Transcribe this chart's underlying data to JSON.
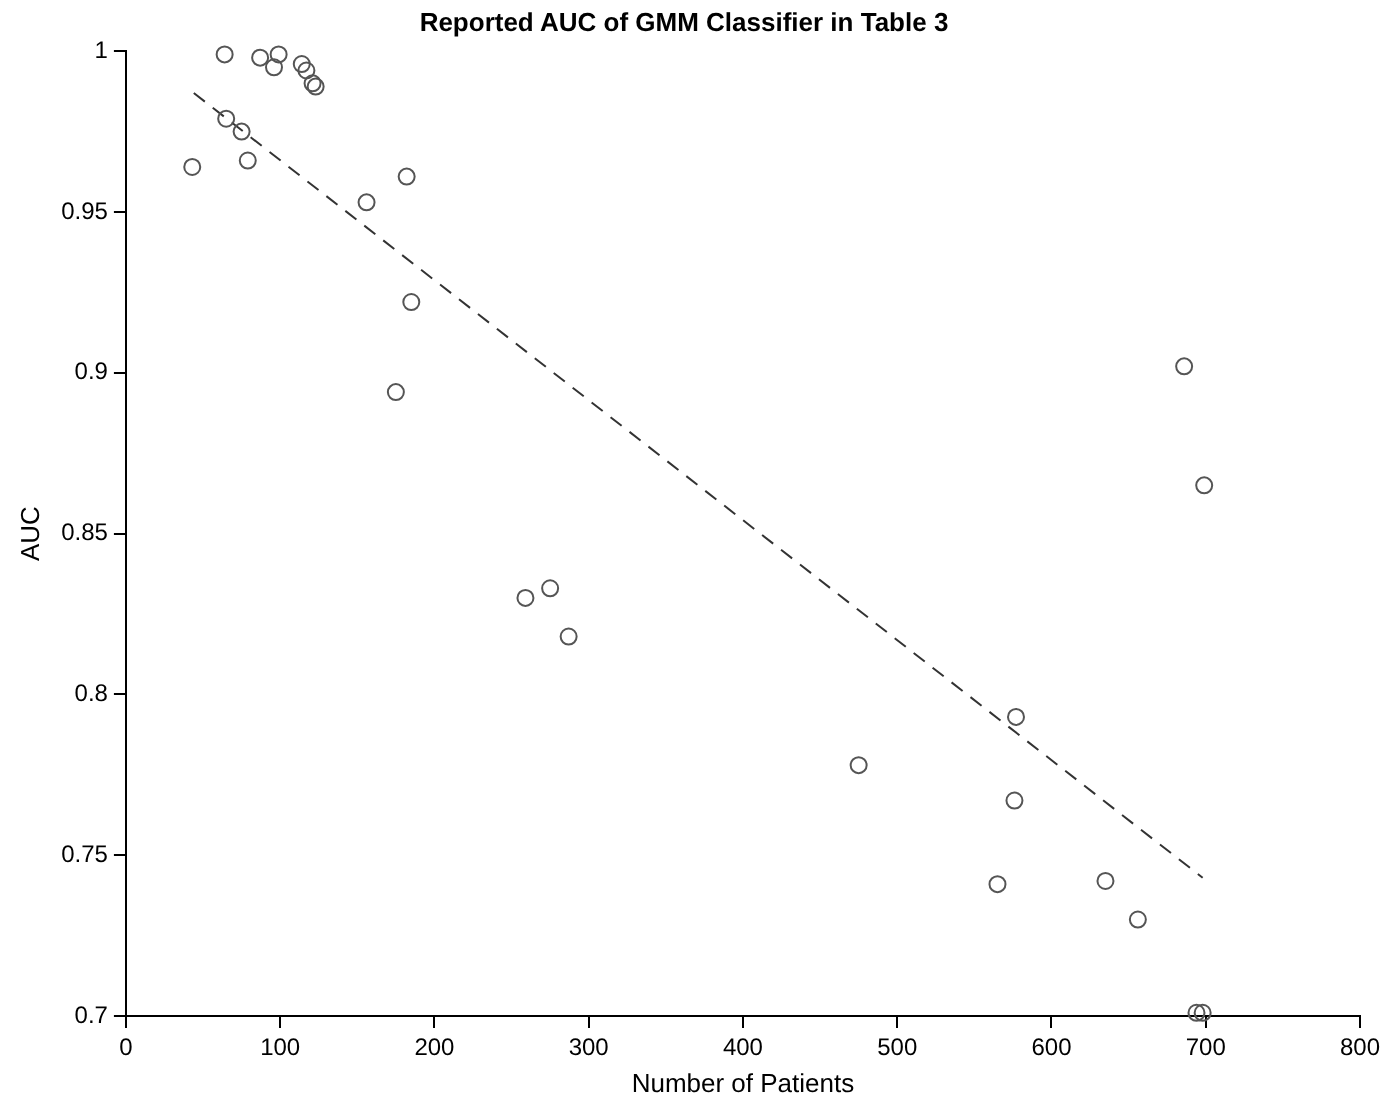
{
  "chart_data": {
    "type": "scatter",
    "title": "Reported AUC of GMM Classifier in Table 3",
    "xlabel": "Number of Patients",
    "ylabel": "AUC",
    "xlim": [
      0,
      800
    ],
    "xticks": [
      0,
      100,
      200,
      300,
      400,
      500,
      600,
      700,
      800
    ],
    "ylim": [
      0.7,
      1
    ],
    "yticks": [
      0.7,
      0.75,
      0.8,
      0.85,
      0.9,
      0.95,
      1
    ],
    "grid": false,
    "legend": false,
    "marker": "circle",
    "series": [
      {
        "color": "#555555",
        "x": [
          64,
          87,
          99,
          96,
          114,
          117,
          121,
          123,
          65,
          75,
          43,
          79,
          182,
          156,
          185,
          175,
          259,
          275,
          287,
          475,
          577,
          576,
          565,
          635,
          656,
          694,
          698,
          686,
          699
        ],
        "values": [
          0.999,
          0.998,
          0.999,
          0.995,
          0.996,
          0.994,
          0.99,
          0.989,
          0.979,
          0.975,
          0.964,
          0.966,
          0.961,
          0.953,
          0.922,
          0.894,
          0.83,
          0.833,
          0.818,
          0.778,
          0.793,
          0.767,
          0.741,
          0.742,
          0.73,
          0.701,
          0.701,
          0.902,
          0.865
        ]
      },
      {
        "type": "line",
        "color": "#333333",
        "line_style": "dashed",
        "marker": "none",
        "x": [
          44,
          698
        ],
        "values": [
          0.987,
          0.743
        ]
      }
    ]
  }
}
